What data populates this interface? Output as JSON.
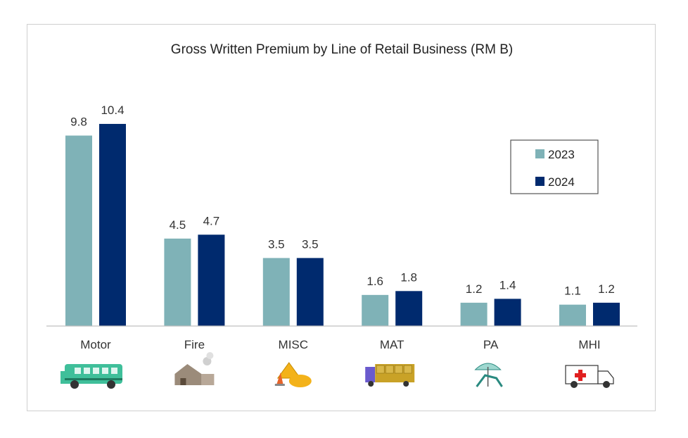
{
  "chart_data": {
    "type": "bar",
    "title": "Gross Written Premium by Line of Retail Business (RM B)",
    "xlabel": "",
    "ylabel": "",
    "ylim": [
      0,
      11.5
    ],
    "grid": false,
    "legend_position": "top-right",
    "categories": [
      "Motor",
      "Fire",
      "MISC",
      "MAT",
      "PA",
      "MHI"
    ],
    "category_icons": [
      "bus-icon",
      "house-fire-icon",
      "construction-icon",
      "cargo-truck-icon",
      "beach-chair-icon",
      "ambulance-icon"
    ],
    "series": [
      {
        "name": "2023",
        "color": "#7fb2b7",
        "values": [
          9.8,
          4.5,
          3.5,
          1.6,
          1.2,
          1.1
        ],
        "labels": [
          "9.8",
          "4.5",
          "3.5",
          "1.6",
          "1.2",
          "1.1"
        ]
      },
      {
        "name": "2024",
        "color": "#002a6e",
        "values": [
          10.4,
          4.7,
          3.5,
          1.8,
          1.4,
          1.2
        ],
        "labels": [
          "10.4",
          "4.7",
          "3.5",
          "1.8",
          "1.4",
          "1.2"
        ]
      }
    ]
  }
}
